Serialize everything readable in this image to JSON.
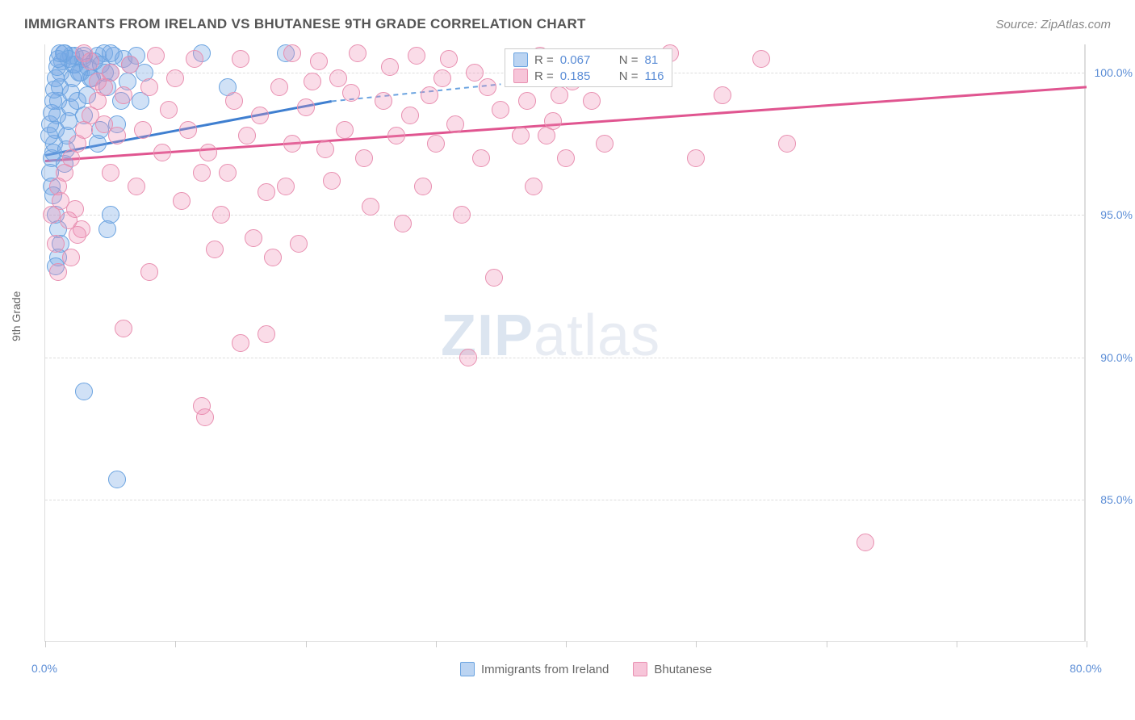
{
  "title": "IMMIGRANTS FROM IRELAND VS BHUTANESE 9TH GRADE CORRELATION CHART",
  "source": "Source: ZipAtlas.com",
  "yaxis_label": "9th Grade",
  "watermark_bold": "ZIP",
  "watermark_light": "atlas",
  "chart": {
    "type": "scatter",
    "xlim": [
      0,
      80
    ],
    "ylim": [
      80,
      101
    ],
    "yticks": [
      {
        "val": 100.0,
        "label": "100.0%"
      },
      {
        "val": 95.0,
        "label": "95.0%"
      },
      {
        "val": 90.0,
        "label": "90.0%"
      },
      {
        "val": 85.0,
        "label": "85.0%"
      }
    ],
    "xticks_major": [
      0,
      10,
      20,
      30,
      40,
      50,
      60,
      70,
      80
    ],
    "xtick_labels": [
      {
        "val": 0,
        "label": "0.0%"
      },
      {
        "val": 80,
        "label": "80.0%"
      }
    ],
    "marker_radius": 11,
    "marker_stroke_width": 1.5,
    "grid_color": "#dddddd",
    "background": "#ffffff"
  },
  "series": [
    {
      "name": "Immigrants from Ireland",
      "fill": "rgba(120,170,230,0.35)",
      "stroke": "#6aa3e0",
      "trend_color": "#3f7fd0",
      "trend_dash_color": "#6aa3e0",
      "R": "0.067",
      "N": "81",
      "trend_solid": {
        "x1": 0,
        "y1": 97.1,
        "x2": 22,
        "y2": 99.0
      },
      "trend_dash": {
        "x1": 22,
        "y1": 99.0,
        "x2": 35,
        "y2": 99.6
      },
      "points": [
        [
          0.5,
          97.0
        ],
        [
          0.6,
          97.2
        ],
        [
          0.7,
          97.5
        ],
        [
          0.8,
          98.0
        ],
        [
          0.9,
          98.5
        ],
        [
          1.0,
          99.0
        ],
        [
          1.1,
          99.5
        ],
        [
          1.2,
          100.0
        ],
        [
          1.3,
          100.4
        ],
        [
          1.4,
          100.7
        ],
        [
          1.5,
          96.8
        ],
        [
          1.6,
          97.3
        ],
        [
          1.7,
          97.8
        ],
        [
          1.8,
          98.3
        ],
        [
          1.9,
          98.8
        ],
        [
          2.0,
          99.3
        ],
        [
          2.1,
          99.8
        ],
        [
          2.2,
          100.3
        ],
        [
          2.3,
          100.6
        ],
        [
          0.4,
          96.5
        ],
        [
          0.5,
          96.0
        ],
        [
          0.6,
          95.7
        ],
        [
          0.8,
          95.0
        ],
        [
          1.0,
          94.5
        ],
        [
          1.2,
          94.0
        ],
        [
          2.5,
          99.0
        ],
        [
          2.7,
          100.0
        ],
        [
          2.9,
          100.5
        ],
        [
          3.0,
          98.5
        ],
        [
          3.2,
          99.2
        ],
        [
          3.5,
          99.8
        ],
        [
          3.8,
          100.4
        ],
        [
          4.0,
          97.5
        ],
        [
          4.2,
          98.0
        ],
        [
          4.5,
          100.7
        ],
        [
          4.8,
          99.5
        ],
        [
          5.0,
          100.0
        ],
        [
          5.3,
          100.6
        ],
        [
          5.5,
          98.2
        ],
        [
          5.8,
          99.0
        ],
        [
          6.0,
          100.5
        ],
        [
          6.3,
          99.7
        ],
        [
          6.5,
          100.3
        ],
        [
          7.0,
          100.6
        ],
        [
          7.3,
          99.0
        ],
        [
          7.6,
          100.0
        ],
        [
          1.0,
          93.5
        ],
        [
          0.8,
          93.2
        ],
        [
          3.0,
          88.8
        ],
        [
          5.5,
          85.7
        ],
        [
          4.8,
          94.5
        ],
        [
          5.0,
          95.0
        ],
        [
          12.0,
          100.7
        ],
        [
          14.0,
          99.5
        ],
        [
          18.5,
          100.7
        ],
        [
          2.0,
          100.6
        ],
        [
          2.3,
          100.3
        ],
        [
          2.6,
          100.0
        ],
        [
          3.0,
          100.6
        ],
        [
          3.3,
          100.2
        ],
        [
          3.6,
          99.8
        ],
        [
          1.5,
          100.7
        ],
        [
          1.8,
          100.5
        ],
        [
          0.3,
          97.8
        ],
        [
          0.4,
          98.2
        ],
        [
          0.5,
          98.6
        ],
        [
          0.6,
          99.0
        ],
        [
          0.7,
          99.4
        ],
        [
          0.8,
          99.8
        ],
        [
          0.9,
          100.2
        ],
        [
          1.0,
          100.5
        ],
        [
          1.1,
          100.7
        ],
        [
          4.0,
          100.6
        ],
        [
          4.3,
          100.3
        ],
        [
          4.6,
          100.0
        ],
        [
          5.0,
          100.7
        ]
      ]
    },
    {
      "name": "Bhutanese",
      "fill": "rgba(240,140,180,0.30)",
      "stroke": "#e88fb0",
      "trend_color": "#e05590",
      "R": "0.185",
      "N": "116",
      "trend_solid": {
        "x1": 0,
        "y1": 96.9,
        "x2": 80,
        "y2": 99.5
      },
      "points": [
        [
          1.0,
          96.0
        ],
        [
          1.5,
          96.5
        ],
        [
          2.0,
          97.0
        ],
        [
          2.5,
          97.5
        ],
        [
          3.0,
          98.0
        ],
        [
          3.5,
          98.5
        ],
        [
          4.0,
          99.0
        ],
        [
          4.5,
          99.5
        ],
        [
          5.0,
          100.0
        ],
        [
          1.2,
          95.5
        ],
        [
          1.8,
          94.8
        ],
        [
          2.3,
          95.2
        ],
        [
          2.8,
          94.5
        ],
        [
          8.0,
          93.0
        ],
        [
          10.0,
          99.8
        ],
        [
          10.5,
          95.5
        ],
        [
          11.0,
          98.0
        ],
        [
          11.5,
          100.5
        ],
        [
          12.0,
          96.5
        ],
        [
          12.5,
          97.2
        ],
        [
          13.0,
          93.8
        ],
        [
          13.5,
          95.0
        ],
        [
          14.0,
          96.5
        ],
        [
          14.5,
          99.0
        ],
        [
          15.0,
          100.5
        ],
        [
          15.5,
          97.8
        ],
        [
          16.0,
          94.2
        ],
        [
          16.5,
          98.5
        ],
        [
          17.0,
          95.8
        ],
        [
          17.5,
          93.5
        ],
        [
          18.0,
          99.5
        ],
        [
          18.5,
          96.0
        ],
        [
          19.0,
          97.5
        ],
        [
          19.5,
          94.0
        ],
        [
          20.0,
          98.8
        ],
        [
          20.5,
          99.7
        ],
        [
          21.0,
          100.4
        ],
        [
          22.0,
          96.2
        ],
        [
          23.0,
          98.0
        ],
        [
          23.5,
          99.3
        ],
        [
          24.0,
          100.7
        ],
        [
          24.5,
          97.0
        ],
        [
          25.0,
          95.3
        ],
        [
          26.0,
          99.0
        ],
        [
          26.5,
          100.2
        ],
        [
          27.0,
          97.8
        ],
        [
          27.5,
          94.7
        ],
        [
          28.0,
          98.5
        ],
        [
          28.5,
          100.6
        ],
        [
          29.0,
          96.0
        ],
        [
          29.5,
          99.2
        ],
        [
          30.0,
          97.5
        ],
        [
          30.5,
          99.8
        ],
        [
          31.0,
          100.5
        ],
        [
          31.5,
          98.2
        ],
        [
          32.0,
          95.0
        ],
        [
          33.0,
          100.0
        ],
        [
          33.5,
          97.0
        ],
        [
          34.0,
          99.5
        ],
        [
          34.5,
          92.8
        ],
        [
          35.0,
          98.7
        ],
        [
          36.0,
          100.3
        ],
        [
          36.5,
          97.8
        ],
        [
          37.0,
          99.0
        ],
        [
          37.5,
          96.0
        ],
        [
          38.0,
          100.6
        ],
        [
          39.0,
          98.3
        ],
        [
          40.0,
          97.0
        ],
        [
          40.5,
          99.7
        ],
        [
          41.0,
          100.2
        ],
        [
          32.5,
          90.0
        ],
        [
          15.0,
          90.5
        ],
        [
          17.0,
          90.8
        ],
        [
          12.0,
          88.3
        ],
        [
          12.3,
          87.9
        ],
        [
          6.0,
          91.0
        ],
        [
          48.0,
          100.7
        ],
        [
          50.0,
          97.0
        ],
        [
          52.0,
          99.2
        ],
        [
          55.0,
          100.5
        ],
        [
          57.0,
          97.5
        ],
        [
          63.0,
          83.5
        ],
        [
          0.5,
          95.0
        ],
        [
          0.8,
          94.0
        ],
        [
          1.0,
          93.0
        ],
        [
          5.0,
          96.5
        ],
        [
          5.5,
          97.8
        ],
        [
          6.0,
          99.2
        ],
        [
          6.5,
          100.3
        ],
        [
          7.0,
          96.0
        ],
        [
          7.5,
          98.0
        ],
        [
          8.0,
          99.5
        ],
        [
          8.5,
          100.6
        ],
        [
          9.0,
          97.2
        ],
        [
          9.5,
          98.7
        ],
        [
          19.0,
          100.7
        ],
        [
          21.5,
          97.3
        ],
        [
          22.5,
          99.8
        ],
        [
          42.0,
          99.0
        ],
        [
          43.0,
          97.5
        ],
        [
          44.0,
          100.0
        ],
        [
          3.0,
          100.7
        ],
        [
          3.5,
          100.4
        ],
        [
          4.0,
          99.7
        ],
        [
          4.5,
          98.2
        ],
        [
          38.5,
          97.8
        ],
        [
          39.5,
          99.2
        ],
        [
          2.0,
          93.5
        ],
        [
          2.5,
          94.3
        ]
      ]
    }
  ],
  "legend_top": {
    "rows": [
      {
        "swatch_fill": "rgba(120,170,230,0.5)",
        "swatch_stroke": "#6aa3e0",
        "r_label": "R =",
        "r_val": "0.067",
        "n_label": "N =",
        "n_val": "81"
      },
      {
        "swatch_fill": "rgba(240,140,180,0.5)",
        "swatch_stroke": "#e88fb0",
        "r_label": "R =",
        "r_val": "0.185",
        "n_label": "N =",
        "n_val": "116"
      }
    ]
  },
  "legend_bottom": [
    {
      "swatch_fill": "rgba(120,170,230,0.5)",
      "swatch_stroke": "#6aa3e0",
      "label": "Immigrants from Ireland"
    },
    {
      "swatch_fill": "rgba(240,140,180,0.5)",
      "swatch_stroke": "#e88fb0",
      "label": "Bhutanese"
    }
  ]
}
